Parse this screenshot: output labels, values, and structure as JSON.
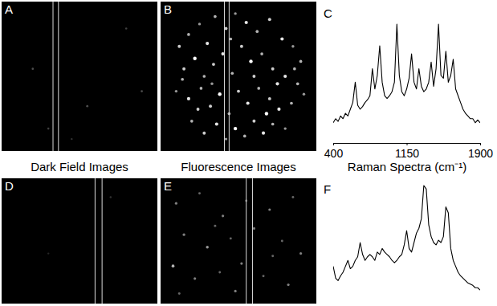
{
  "images": [
    {
      "label": "A",
      "spots": [
        [
          20,
          45,
          0.3
        ],
        [
          55,
          70,
          0.3
        ],
        [
          80,
          18,
          0.25
        ],
        [
          90,
          60,
          0.3
        ],
        [
          30,
          85,
          0.25
        ],
        [
          45,
          92,
          0.2
        ]
      ]
    },
    {
      "label": "B",
      "spots": [
        [
          12,
          30,
          0.8
        ],
        [
          18,
          22,
          0.7
        ],
        [
          25,
          15,
          0.6
        ],
        [
          30,
          28,
          0.9
        ],
        [
          35,
          10,
          0.7
        ],
        [
          42,
          18,
          0.8
        ],
        [
          48,
          8,
          0.6
        ],
        [
          55,
          14,
          0.9
        ],
        [
          62,
          20,
          0.7
        ],
        [
          70,
          12,
          0.8
        ],
        [
          78,
          25,
          0.9
        ],
        [
          85,
          30,
          0.6
        ],
        [
          90,
          40,
          0.7
        ],
        [
          15,
          45,
          0.8
        ],
        [
          22,
          38,
          1
        ],
        [
          28,
          50,
          0.7
        ],
        [
          34,
          42,
          0.8
        ],
        [
          40,
          35,
          0.9
        ],
        [
          46,
          48,
          0.7
        ],
        [
          52,
          30,
          0.8
        ],
        [
          58,
          40,
          1
        ],
        [
          65,
          35,
          0.7
        ],
        [
          72,
          45,
          0.8
        ],
        [
          80,
          50,
          0.9
        ],
        [
          88,
          55,
          0.7
        ],
        [
          10,
          60,
          0.6
        ],
        [
          18,
          65,
          0.9
        ],
        [
          26,
          58,
          0.7
        ],
        [
          32,
          70,
          0.8
        ],
        [
          38,
          62,
          1
        ],
        [
          44,
          75,
          0.7
        ],
        [
          50,
          60,
          0.8
        ],
        [
          56,
          68,
          0.9
        ],
        [
          63,
          58,
          0.7
        ],
        [
          70,
          65,
          0.8
        ],
        [
          76,
          72,
          0.9
        ],
        [
          84,
          68,
          0.7
        ],
        [
          92,
          62,
          0.6
        ],
        [
          20,
          80,
          0.7
        ],
        [
          28,
          88,
          0.8
        ],
        [
          36,
          82,
          0.9
        ],
        [
          42,
          92,
          0.6
        ],
        [
          48,
          85,
          1
        ],
        [
          54,
          90,
          0.7
        ],
        [
          60,
          80,
          0.8
        ],
        [
          66,
          88,
          0.9
        ],
        [
          72,
          82,
          0.7
        ],
        [
          80,
          85,
          0.6
        ],
        [
          14,
          52,
          0.7
        ],
        [
          60,
          50,
          0.8
        ],
        [
          45,
          25,
          0.7
        ],
        [
          75,
          55,
          0.9
        ],
        [
          33,
          55,
          0.6
        ],
        [
          68,
          75,
          1
        ],
        [
          24,
          72,
          0.8
        ],
        [
          86,
          45,
          0.7
        ]
      ]
    },
    {
      "label": "D",
      "spots": [
        [
          70,
          15,
          0.2
        ],
        [
          30,
          60,
          0.15
        ]
      ]
    },
    {
      "label": "E",
      "spots": [
        [
          10,
          20,
          0.5
        ],
        [
          25,
          12,
          0.4
        ],
        [
          40,
          30,
          0.5
        ],
        [
          55,
          18,
          0.4
        ],
        [
          70,
          25,
          0.5
        ],
        [
          85,
          15,
          0.4
        ],
        [
          15,
          45,
          0.5
        ],
        [
          30,
          55,
          0.6
        ],
        [
          45,
          48,
          0.4
        ],
        [
          60,
          40,
          0.5
        ],
        [
          78,
          50,
          0.4
        ],
        [
          90,
          60,
          0.5
        ],
        [
          8,
          70,
          0.7
        ],
        [
          22,
          80,
          0.5
        ],
        [
          38,
          75,
          0.4
        ],
        [
          52,
          68,
          0.5
        ],
        [
          66,
          78,
          0.4
        ],
        [
          82,
          85,
          0.5
        ],
        [
          12,
          92,
          0.4
        ],
        [
          48,
          90,
          0.5
        ],
        [
          72,
          62,
          0.4
        ],
        [
          35,
          38,
          0.4
        ]
      ]
    }
  ],
  "captions": [
    "Dark Field Images",
    "Fluorescence Images",
    "Raman Spectra (cm⁻¹)"
  ],
  "chart_data": [
    {
      "type": "line",
      "title": "C",
      "color": "#000000",
      "tick_labels": "x",
      "x": [
        400,
        425,
        450,
        475,
        500,
        525,
        550,
        575,
        600,
        625,
        650,
        675,
        700,
        725,
        750,
        775,
        800,
        825,
        850,
        875,
        900,
        925,
        950,
        975,
        1000,
        1025,
        1050,
        1075,
        1100,
        1125,
        1150,
        1175,
        1200,
        1225,
        1250,
        1275,
        1300,
        1325,
        1350,
        1375,
        1400,
        1425,
        1450,
        1475,
        1500,
        1525,
        1550,
        1575,
        1600,
        1625,
        1650,
        1675,
        1700,
        1725,
        1750,
        1775,
        1800,
        1825,
        1850,
        1875,
        1900
      ],
      "values": [
        15,
        18,
        16,
        20,
        18,
        22,
        20,
        25,
        30,
        45,
        28,
        25,
        27,
        30,
        32,
        35,
        55,
        40,
        50,
        72,
        45,
        35,
        33,
        35,
        38,
        45,
        88,
        50,
        38,
        35,
        40,
        48,
        66,
        45,
        40,
        55,
        42,
        38,
        40,
        45,
        60,
        42,
        55,
        88,
        50,
        48,
        68,
        45,
        50,
        62,
        40,
        35,
        30,
        25,
        22,
        20,
        18,
        18,
        15,
        17,
        15
      ],
      "xlim": [
        400,
        1900
      ],
      "xticks": [
        400,
        1150,
        1900
      ],
      "ylim": [
        0,
        100
      ]
    },
    {
      "type": "line",
      "title": "F",
      "color": "#000000",
      "tick_labels": false,
      "x": [
        400,
        425,
        450,
        475,
        500,
        525,
        550,
        575,
        600,
        625,
        650,
        675,
        700,
        725,
        750,
        775,
        800,
        825,
        850,
        875,
        900,
        925,
        950,
        975,
        1000,
        1025,
        1050,
        1075,
        1100,
        1125,
        1150,
        1175,
        1200,
        1225,
        1250,
        1275,
        1300,
        1325,
        1350,
        1375,
        1400,
        1425,
        1450,
        1475,
        1500,
        1525,
        1550,
        1575,
        1600,
        1625,
        1650,
        1675,
        1700,
        1725,
        1750,
        1775,
        1800,
        1825,
        1850,
        1875,
        1900
      ],
      "values": [
        30,
        20,
        18,
        22,
        25,
        30,
        35,
        28,
        30,
        35,
        38,
        50,
        40,
        35,
        38,
        40,
        38,
        35,
        42,
        40,
        45,
        42,
        40,
        38,
        35,
        33,
        35,
        38,
        40,
        48,
        60,
        45,
        42,
        50,
        58,
        62,
        70,
        98,
        95,
        65,
        55,
        50,
        48,
        52,
        50,
        55,
        80,
        75,
        45,
        35,
        30,
        25,
        22,
        20,
        18,
        16,
        15,
        14,
        12,
        12,
        10
      ],
      "xlim": [
        400,
        1900
      ],
      "ylim": [
        0,
        100
      ]
    }
  ]
}
